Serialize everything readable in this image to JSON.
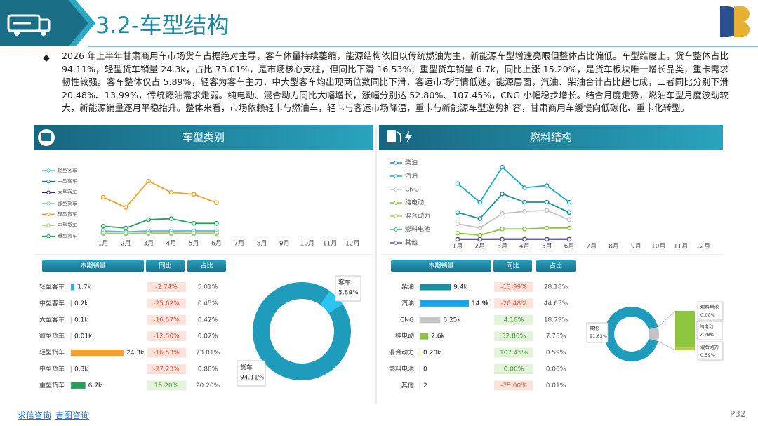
{
  "header": {
    "title": "3.2-车型结构"
  },
  "summary": "2026 年上半年甘肃商用车市场货车占据绝对主导，客车体量持续萎缩，能源结构依旧以传统燃油为主，新能源车型增速亮眼但整体占比偏低。车型维度上，货车整体占比 94.11%，轻型货车销量 24.3k，占比 73.01%，是市场核心支柱，但同比下滑 16.53%；重型货车销量 6.7k，同比上涨 15.20%，是货车板块唯一增长品类，重卡需求韧性较强。客车整体仅占 5.89%，轻客为客车主力，中大型客车均出现两位数同比下滑，客运市场行情低迷。能源层面，汽油、柴油合计占比超七成，二者同比分别下滑 20.48%、13.99%，传统燃油需求走弱。纯电动、混合动力同比大幅增长，涨幅分别达 52.80%、107.45%，CNG 小幅稳步增长。结合月度走势，燃油车型月度波动较大，新能源销量逐月平稳抬升。整体来看，市场依赖轻卡与燃油车，轻卡与客运市场降温，重卡与新能源车型逆势扩容，甘肃商用车缓慢向低碳化、重卡化转型。",
  "panels": [
    {
      "title": "车型类别"
    },
    {
      "title": "燃料结构"
    }
  ],
  "chart_data": [
    {
      "type": "line",
      "categories": [
        "1月",
        "2月",
        "3月",
        "4月",
        "5月",
        "6月",
        "7月",
        "8月",
        "9月",
        "10月",
        "11月",
        "12月"
      ],
      "series": [
        {
          "name": "轻型客车",
          "color": "#5bb8d8",
          "values": [
            0.3,
            0.2,
            0.3,
            0.3,
            0.3,
            0.3,
            null,
            null,
            null,
            null,
            null,
            null
          ]
        },
        {
          "name": "中型客车",
          "color": "#2b6f9a",
          "values": [
            0.03,
            0.02,
            0.04,
            0.04,
            0.03,
            0.04,
            null,
            null,
            null,
            null,
            null,
            null
          ]
        },
        {
          "name": "大型客车",
          "color": "#1f2f6b",
          "values": [
            0.02,
            0.01,
            0.02,
            0.02,
            0.02,
            0.01,
            null,
            null,
            null,
            null,
            null,
            null
          ]
        },
        {
          "name": "微型货车",
          "color": "#8fc7e8",
          "values": [
            0,
            0,
            0,
            0,
            0.01,
            0,
            null,
            null,
            null,
            null,
            null,
            null
          ]
        },
        {
          "name": "轻型货车",
          "color": "#f0a22a",
          "values": [
            3.9,
            2.8,
            5.6,
            4.4,
            4.2,
            3.3,
            null,
            null,
            null,
            null,
            null,
            null
          ]
        },
        {
          "name": "中型货车",
          "color": "#9ccf6a",
          "values": [
            0.05,
            0.03,
            0.06,
            0.06,
            0.05,
            0.05,
            null,
            null,
            null,
            null,
            null,
            null
          ]
        },
        {
          "name": "重型货车",
          "color": "#23a05a",
          "values": [
            0.8,
            0.6,
            1.5,
            1.6,
            1.1,
            1.1,
            null,
            null,
            null,
            null,
            null,
            null
          ]
        }
      ]
    },
    {
      "type": "line",
      "categories": [
        "1月",
        "2月",
        "3月",
        "4月",
        "5月",
        "6月",
        "7月",
        "8月",
        "9月",
        "10月",
        "11月",
        "12月"
      ],
      "series": [
        {
          "name": "柴油",
          "color": "#1a8e9c",
          "values": [
            1.3,
            1.0,
            2.2,
            1.8,
            1.8,
            1.3,
            null,
            null,
            null,
            null,
            null,
            null
          ]
        },
        {
          "name": "汽油",
          "color": "#1aa9c9",
          "values": [
            2.7,
            1.8,
            3.5,
            2.5,
            2.6,
            1.8,
            null,
            null,
            null,
            null,
            null,
            null
          ]
        },
        {
          "name": "CNG",
          "color": "#c4c4c4",
          "values": [
            0.75,
            0.55,
            1.25,
            1.35,
            1.4,
            0.95,
            null,
            null,
            null,
            null,
            null,
            null
          ]
        },
        {
          "name": "纯电动",
          "color": "#8cc63f",
          "values": [
            0.3,
            0.2,
            0.5,
            0.5,
            0.55,
            0.55,
            null,
            null,
            null,
            null,
            null,
            null
          ]
        },
        {
          "name": "混合动力",
          "color": "#b8c94a",
          "values": [
            0.03,
            0.02,
            0.04,
            0.04,
            0.03,
            0.04,
            null,
            null,
            null,
            null,
            null,
            null
          ]
        },
        {
          "name": "燃料电池",
          "color": "#2aa87a",
          "values": [
            0,
            0,
            0,
            0,
            0,
            0,
            null,
            null,
            null,
            null,
            null,
            null
          ]
        },
        {
          "name": "其他",
          "color": "#6a4c9c",
          "values": [
            0,
            0,
            0.001,
            0,
            0,
            0.001,
            null,
            null,
            null,
            null,
            null,
            null
          ]
        }
      ]
    },
    {
      "type": "donut",
      "categories": [
        "客车",
        "货车"
      ],
      "values": [
        5.89,
        94.11
      ],
      "value_labels": [
        "5.89%",
        "94.11%"
      ],
      "colors": [
        "#2ec4f0",
        "#1f9cbc"
      ]
    },
    {
      "type": "pie-of-pie",
      "categories": [
        "其他",
        "燃料电池",
        "纯电动",
        "混合动力"
      ],
      "values": [
        91.63,
        0,
        7.78,
        0.59
      ],
      "value_labels": [
        "91.63%",
        "0.00%",
        "7.78%",
        "0.59%"
      ],
      "colors": [
        "#1f9cbc",
        "#2aa87a",
        "#8cc63f",
        "#b8c94a"
      ],
      "split_color": "#c3c3c3"
    }
  ],
  "tables": [
    {
      "columns": [
        "本期销量",
        "同比",
        "占比"
      ],
      "rows": [
        {
          "name": "轻型客车",
          "sales": 1700,
          "sales_label": "1.7k",
          "yoy": "-2.74%",
          "share": "5.01%",
          "color": "#3aa9e0"
        },
        {
          "name": "中型客车",
          "sales": 200,
          "sales_label": "0.2k",
          "yoy": "-25.62%",
          "share": "0.45%",
          "color": "#2b6f9a"
        },
        {
          "name": "大型客车",
          "sales": 100,
          "sales_label": "0.1k",
          "yoy": "-16.57%",
          "share": "0.42%",
          "color": "#1f2f6b"
        },
        {
          "name": "微型货车",
          "sales": 10,
          "sales_label": "0.01k",
          "yoy": "-12.50%",
          "share": "0.02%",
          "color": "#8fc7e8"
        },
        {
          "name": "轻型货车",
          "sales": 24300,
          "sales_label": "24.3k",
          "yoy": "-16.53%",
          "share": "73.01%",
          "color": "#f0a22a"
        },
        {
          "name": "中型货车",
          "sales": 300,
          "sales_label": "0.3k",
          "yoy": "-27.23%",
          "share": "0.88%",
          "color": "#9ccf6a"
        },
        {
          "name": "重型货车",
          "sales": 6700,
          "sales_label": "6.7k",
          "yoy": "15.20%",
          "share": "20.20%",
          "color": "#23a05a"
        }
      ]
    },
    {
      "columns": [
        "本期销量",
        "同比",
        "占比"
      ],
      "rows": [
        {
          "name": "柴油",
          "sales": 9400,
          "sales_label": "9.4k",
          "yoy": "-13.99%",
          "share": "28.18%",
          "color": "#1a8e9c"
        },
        {
          "name": "汽油",
          "sales": 14900,
          "sales_label": "14.9k",
          "yoy": "-20.48%",
          "share": "44.65%",
          "color": "#1aa6e6"
        },
        {
          "name": "CNG",
          "sales": 6250,
          "sales_label": "6.25k",
          "yoy": "4.18%",
          "share": "18.79%",
          "color": "#c4c4c4"
        },
        {
          "name": "纯电动",
          "sales": 2600,
          "sales_label": "2.6k",
          "yoy": "52.80%",
          "share": "7.78%",
          "color": "#8cc63f"
        },
        {
          "name": "混合动力",
          "sales": 200,
          "sales_label": "0.20k",
          "yoy": "107.45%",
          "share": "0.59%",
          "color": "#b8c94a"
        },
        {
          "name": "燃料电池",
          "sales": 0,
          "yoy": "0.00%",
          "share": "0.00%",
          "color": "#2aa87a"
        },
        {
          "name": "其他",
          "sales": 2,
          "yoy": "-75.00%",
          "share": "0.01%",
          "color": "#6a4c9c"
        }
      ]
    }
  ],
  "footer": {
    "links": [
      "求信咨询",
      "吉图咨询"
    ],
    "page": "P32"
  }
}
